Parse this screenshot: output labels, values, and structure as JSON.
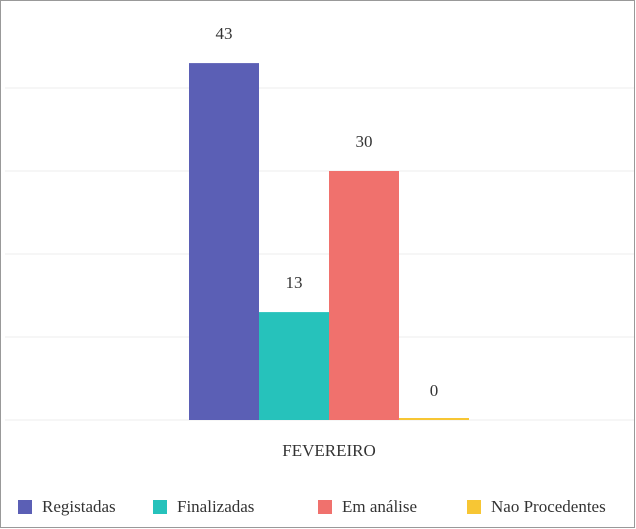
{
  "chart_data": {
    "type": "bar",
    "categories": [
      "FEVEREIRO"
    ],
    "series": [
      {
        "name": "Registadas",
        "color": "#5b5fb5",
        "values": [
          43
        ]
      },
      {
        "name": "Finalizadas",
        "color": "#26c2bb",
        "values": [
          13
        ]
      },
      {
        "name": "Em análise",
        "color": "#f0716d",
        "values": [
          30
        ]
      },
      {
        "name": "Nao Procedentes",
        "color": "#f7c634",
        "values": [
          0
        ]
      }
    ],
    "ylim": [
      0,
      50
    ],
    "yticks": [
      0,
      10,
      20,
      30,
      40
    ],
    "grid": true,
    "legend": "bottom"
  }
}
